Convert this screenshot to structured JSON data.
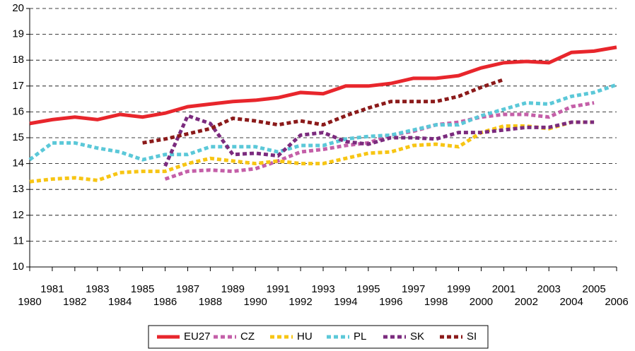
{
  "chart_data": {
    "type": "line",
    "x": [
      1980,
      1981,
      1982,
      1983,
      1984,
      1985,
      1986,
      1987,
      1988,
      1989,
      1990,
      1991,
      1992,
      1993,
      1994,
      1995,
      1996,
      1997,
      1998,
      1999,
      2000,
      2001,
      2002,
      2003,
      2004,
      2005,
      2006
    ],
    "xlim": [
      1980,
      2006
    ],
    "xticks": [
      1980,
      1981,
      1982,
      1983,
      1984,
      1985,
      1986,
      1987,
      1988,
      1989,
      1990,
      1991,
      1992,
      1993,
      1994,
      1995,
      1996,
      1997,
      1998,
      1999,
      2000,
      2001,
      2002,
      2003,
      2004,
      2005,
      2006
    ],
    "ylim": [
      10,
      20
    ],
    "yticks": [
      10,
      11,
      12,
      13,
      14,
      15,
      16,
      17,
      18,
      19,
      20
    ],
    "grid": true,
    "legend": "bottom",
    "series": [
      {
        "name": "EU27",
        "color": "#e8262c",
        "style": "solid",
        "values": [
          15.55,
          15.7,
          15.8,
          15.7,
          15.9,
          15.8,
          15.95,
          16.2,
          16.3,
          16.4,
          16.45,
          16.55,
          16.75,
          16.7,
          17.0,
          17.0,
          17.1,
          17.3,
          17.3,
          17.4,
          17.7,
          17.9,
          17.95,
          17.9,
          18.3,
          18.35,
          18.5
        ]
      },
      {
        "name": "CZ",
        "color": "#c45fa8",
        "style": "dashed",
        "values": [
          null,
          null,
          null,
          null,
          null,
          null,
          13.4,
          13.7,
          13.75,
          13.7,
          13.8,
          14.1,
          14.45,
          14.55,
          14.7,
          14.8,
          15.1,
          15.25,
          15.5,
          15.6,
          15.8,
          15.9,
          15.9,
          15.8,
          16.2,
          16.35,
          null
        ]
      },
      {
        "name": "HU",
        "color": "#f7c514",
        "style": "dashed",
        "values": [
          13.3,
          13.4,
          13.45,
          13.35,
          13.65,
          13.7,
          13.7,
          14.0,
          14.2,
          14.1,
          14.0,
          14.1,
          14.0,
          14.0,
          14.2,
          14.4,
          14.45,
          14.7,
          14.75,
          14.65,
          15.2,
          15.45,
          15.45,
          15.35,
          15.6,
          15.6,
          null
        ]
      },
      {
        "name": "PL",
        "color": "#5bc8d8",
        "style": "dashed",
        "values": [
          14.15,
          14.8,
          14.8,
          14.6,
          14.45,
          14.15,
          14.35,
          14.35,
          14.65,
          14.65,
          14.65,
          14.45,
          14.7,
          14.7,
          14.95,
          15.05,
          15.1,
          15.3,
          15.5,
          15.5,
          15.85,
          16.1,
          16.35,
          16.3,
          16.6,
          16.75,
          17.05
        ]
      },
      {
        "name": "SK",
        "color": "#7b2b7e",
        "style": "dashed",
        "values": [
          null,
          null,
          null,
          null,
          null,
          null,
          13.9,
          15.85,
          15.55,
          14.35,
          14.4,
          14.3,
          15.1,
          15.2,
          14.85,
          14.75,
          15.0,
          15.0,
          14.95,
          15.2,
          15.2,
          15.3,
          15.4,
          15.4,
          15.6,
          15.6,
          null
        ]
      },
      {
        "name": "SI",
        "color": "#8b1a1a",
        "style": "dashed",
        "values": [
          null,
          null,
          null,
          null,
          null,
          14.8,
          14.95,
          15.15,
          15.35,
          15.75,
          15.65,
          15.5,
          15.65,
          15.5,
          15.85,
          16.15,
          16.4,
          16.4,
          16.4,
          16.6,
          16.95,
          17.25,
          null,
          null,
          null,
          null,
          null
        ]
      }
    ]
  }
}
